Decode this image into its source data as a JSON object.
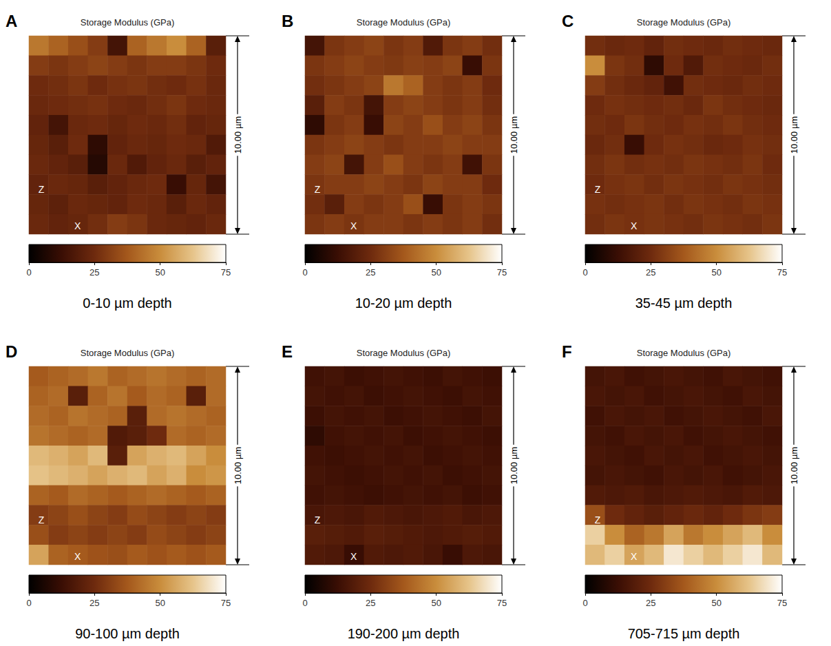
{
  "chart_data": [
    {
      "type": "heatmap",
      "panel": "A",
      "title": "Storage Modulus (GPa)",
      "caption": "0-10 µm depth",
      "scale_bar": "10.00 µm",
      "xlabel": "X",
      "ylabel": "Z",
      "colorbar_range": [
        0,
        75
      ],
      "colorbar_ticks": [
        0,
        25,
        50,
        75
      ],
      "cells": [
        [
          45,
          40,
          35,
          30,
          15,
          40,
          45,
          50,
          40,
          20
        ],
        [
          30,
          28,
          30,
          32,
          30,
          28,
          30,
          30,
          28,
          25
        ],
        [
          25,
          26,
          28,
          25,
          27,
          28,
          26,
          25,
          27,
          24
        ],
        [
          24,
          25,
          26,
          27,
          25,
          24,
          26,
          28,
          25,
          24
        ],
        [
          22,
          15,
          24,
          25,
          23,
          25,
          24,
          26,
          22,
          23
        ],
        [
          23,
          20,
          25,
          10,
          22,
          24,
          23,
          25,
          24,
          18
        ],
        [
          24,
          22,
          20,
          8,
          24,
          18,
          22,
          24,
          20,
          22
        ],
        [
          22,
          24,
          23,
          20,
          22,
          24,
          25,
          12,
          23,
          15
        ],
        [
          23,
          21,
          24,
          23,
          22,
          25,
          24,
          20,
          24,
          22
        ],
        [
          24,
          22,
          23,
          26,
          30,
          28,
          24,
          23,
          22,
          24
        ]
      ]
    },
    {
      "type": "heatmap",
      "panel": "B",
      "title": "Storage Modulus (GPa)",
      "caption": "10-20 µm depth",
      "scale_bar": "10.00 µm",
      "xlabel": "X",
      "ylabel": "Z",
      "colorbar_range": [
        0,
        75
      ],
      "colorbar_ticks": [
        0,
        25,
        50,
        75
      ],
      "cells": [
        [
          15,
          28,
          30,
          32,
          28,
          30,
          18,
          28,
          30,
          26
        ],
        [
          28,
          30,
          32,
          30,
          29,
          31,
          30,
          32,
          12,
          28
        ],
        [
          26,
          28,
          30,
          32,
          45,
          40,
          30,
          28,
          30,
          25
        ],
        [
          20,
          30,
          28,
          15,
          30,
          32,
          30,
          28,
          30,
          26
        ],
        [
          10,
          28,
          30,
          12,
          32,
          30,
          35,
          30,
          32,
          28
        ],
        [
          28,
          30,
          32,
          30,
          28,
          30,
          30,
          32,
          30,
          30
        ],
        [
          30,
          32,
          15,
          30,
          35,
          30,
          28,
          30,
          14,
          28
        ],
        [
          28,
          30,
          30,
          32,
          30,
          28,
          32,
          30,
          30,
          25
        ],
        [
          26,
          20,
          30,
          28,
          30,
          35,
          12,
          28,
          30,
          28
        ],
        [
          28,
          30,
          28,
          30,
          30,
          28,
          30,
          28,
          30,
          26
        ]
      ]
    },
    {
      "type": "heatmap",
      "panel": "C",
      "title": "Storage Modulus (GPa)",
      "caption": "35-45 µm depth",
      "scale_bar": "10.00 µm",
      "xlabel": "X",
      "ylabel": "Z",
      "colorbar_range": [
        0,
        75
      ],
      "colorbar_ticks": [
        0,
        25,
        50,
        75
      ],
      "cells": [
        [
          26,
          24,
          25,
          22,
          26,
          25,
          24,
          26,
          25,
          24
        ],
        [
          50,
          28,
          26,
          10,
          25,
          18,
          26,
          25,
          24,
          26
        ],
        [
          30,
          26,
          24,
          22,
          14,
          26,
          25,
          24,
          26,
          25
        ],
        [
          25,
          27,
          26,
          25,
          26,
          24,
          28,
          26,
          25,
          24
        ],
        [
          26,
          25,
          28,
          26,
          25,
          27,
          26,
          28,
          26,
          25
        ],
        [
          24,
          26,
          12,
          25,
          27,
          26,
          24,
          25,
          27,
          26
        ],
        [
          26,
          28,
          26,
          27,
          26,
          28,
          27,
          26,
          28,
          25
        ],
        [
          25,
          27,
          28,
          26,
          28,
          27,
          26,
          28,
          27,
          26
        ],
        [
          27,
          26,
          27,
          28,
          26,
          28,
          27,
          26,
          28,
          27
        ],
        [
          26,
          28,
          27,
          28,
          27,
          26,
          28,
          27,
          26,
          28
        ]
      ]
    },
    {
      "type": "heatmap",
      "panel": "D",
      "title": "Storage Modulus (GPa)",
      "caption": "90-100 µm depth",
      "scale_bar": "10.00 µm",
      "xlabel": "X",
      "ylabel": "Z",
      "colorbar_range": [
        0,
        75
      ],
      "colorbar_ticks": [
        0,
        25,
        50,
        75
      ],
      "cells": [
        [
          38,
          40,
          42,
          45,
          40,
          42,
          44,
          42,
          40,
          42
        ],
        [
          40,
          42,
          20,
          40,
          44,
          38,
          42,
          40,
          20,
          42
        ],
        [
          42,
          40,
          44,
          42,
          40,
          20,
          42,
          44,
          42,
          40
        ],
        [
          44,
          42,
          40,
          42,
          18,
          20,
          25,
          42,
          40,
          42
        ],
        [
          60,
          58,
          55,
          60,
          20,
          55,
          58,
          60,
          55,
          50
        ],
        [
          62,
          60,
          58,
          55,
          58,
          60,
          55,
          58,
          50,
          52
        ],
        [
          40,
          38,
          42,
          40,
          38,
          40,
          42,
          40,
          38,
          40
        ],
        [
          30,
          32,
          35,
          32,
          30,
          34,
          32,
          30,
          32,
          30
        ],
        [
          35,
          30,
          32,
          30,
          32,
          30,
          34,
          32,
          30,
          32
        ],
        [
          55,
          40,
          38,
          36,
          35,
          38,
          36,
          38,
          36,
          38
        ]
      ]
    },
    {
      "type": "heatmap",
      "panel": "E",
      "title": "Storage Modulus (GPa)",
      "caption": "190-200 µm depth",
      "scale_bar": "10.00 µm",
      "xlabel": "X",
      "ylabel": "Z",
      "colorbar_range": [
        0,
        75
      ],
      "colorbar_ticks": [
        0,
        25,
        50,
        75
      ],
      "cells": [
        [
          14,
          15,
          13,
          14,
          15,
          14,
          13,
          15,
          14,
          13
        ],
        [
          15,
          14,
          15,
          13,
          14,
          15,
          14,
          13,
          15,
          14
        ],
        [
          13,
          15,
          14,
          15,
          13,
          14,
          15,
          14,
          13,
          15
        ],
        [
          10,
          14,
          15,
          14,
          15,
          13,
          14,
          15,
          14,
          13
        ],
        [
          14,
          13,
          14,
          15,
          14,
          15,
          13,
          14,
          15,
          14
        ],
        [
          15,
          14,
          13,
          14,
          15,
          14,
          15,
          13,
          14,
          15
        ],
        [
          14,
          15,
          14,
          13,
          14,
          15,
          14,
          15,
          13,
          14
        ],
        [
          16,
          17,
          16,
          18,
          17,
          16,
          17,
          18,
          16,
          17
        ],
        [
          20,
          19,
          18,
          20,
          19,
          18,
          17,
          18,
          19,
          18
        ],
        [
          18,
          17,
          12,
          18,
          17,
          18,
          16,
          12,
          17,
          16
        ]
      ]
    },
    {
      "type": "heatmap",
      "panel": "F",
      "title": "Storage Modulus (GPa)",
      "caption": "705-715 µm depth",
      "scale_bar": "10.00 µm",
      "xlabel": "X",
      "ylabel": "Z",
      "colorbar_range": [
        0,
        75
      ],
      "colorbar_ticks": [
        0,
        25,
        50,
        75
      ],
      "cells": [
        [
          15,
          16,
          14,
          15,
          16,
          15,
          14,
          16,
          15,
          14
        ],
        [
          16,
          15,
          16,
          14,
          15,
          16,
          15,
          14,
          16,
          15
        ],
        [
          14,
          16,
          15,
          16,
          14,
          15,
          16,
          15,
          14,
          16
        ],
        [
          15,
          14,
          16,
          15,
          16,
          14,
          15,
          16,
          15,
          14
        ],
        [
          16,
          15,
          14,
          16,
          15,
          16,
          14,
          15,
          16,
          15
        ],
        [
          15,
          16,
          15,
          14,
          16,
          15,
          16,
          14,
          15,
          16
        ],
        [
          18,
          17,
          18,
          16,
          17,
          18,
          17,
          16,
          18,
          17
        ],
        [
          35,
          25,
          22,
          20,
          22,
          24,
          22,
          25,
          28,
          30
        ],
        [
          65,
          50,
          40,
          45,
          55,
          45,
          50,
          55,
          60,
          50
        ],
        [
          60,
          65,
          55,
          60,
          70,
          65,
          60,
          65,
          70,
          60
        ]
      ]
    }
  ]
}
